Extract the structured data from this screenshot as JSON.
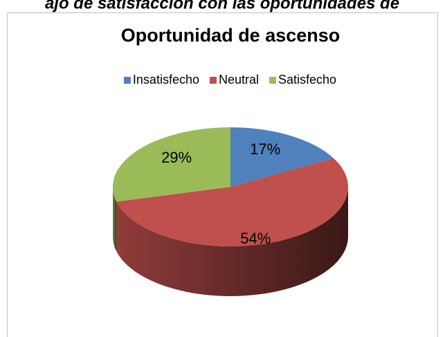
{
  "header": {
    "text": "ajo de satisfacción con las oportunidades de"
  },
  "chart_data": {
    "type": "pie3d",
    "title": "Oportunidad de ascenso",
    "categories": [
      "Insatisfecho",
      "Neutral",
      "Satisfecho"
    ],
    "values": [
      17,
      54,
      29
    ],
    "value_labels": [
      "17%",
      "54%",
      "29%"
    ],
    "colors": [
      "#4f81bd",
      "#c0504d",
      "#9bbb59"
    ],
    "legend": "top"
  }
}
